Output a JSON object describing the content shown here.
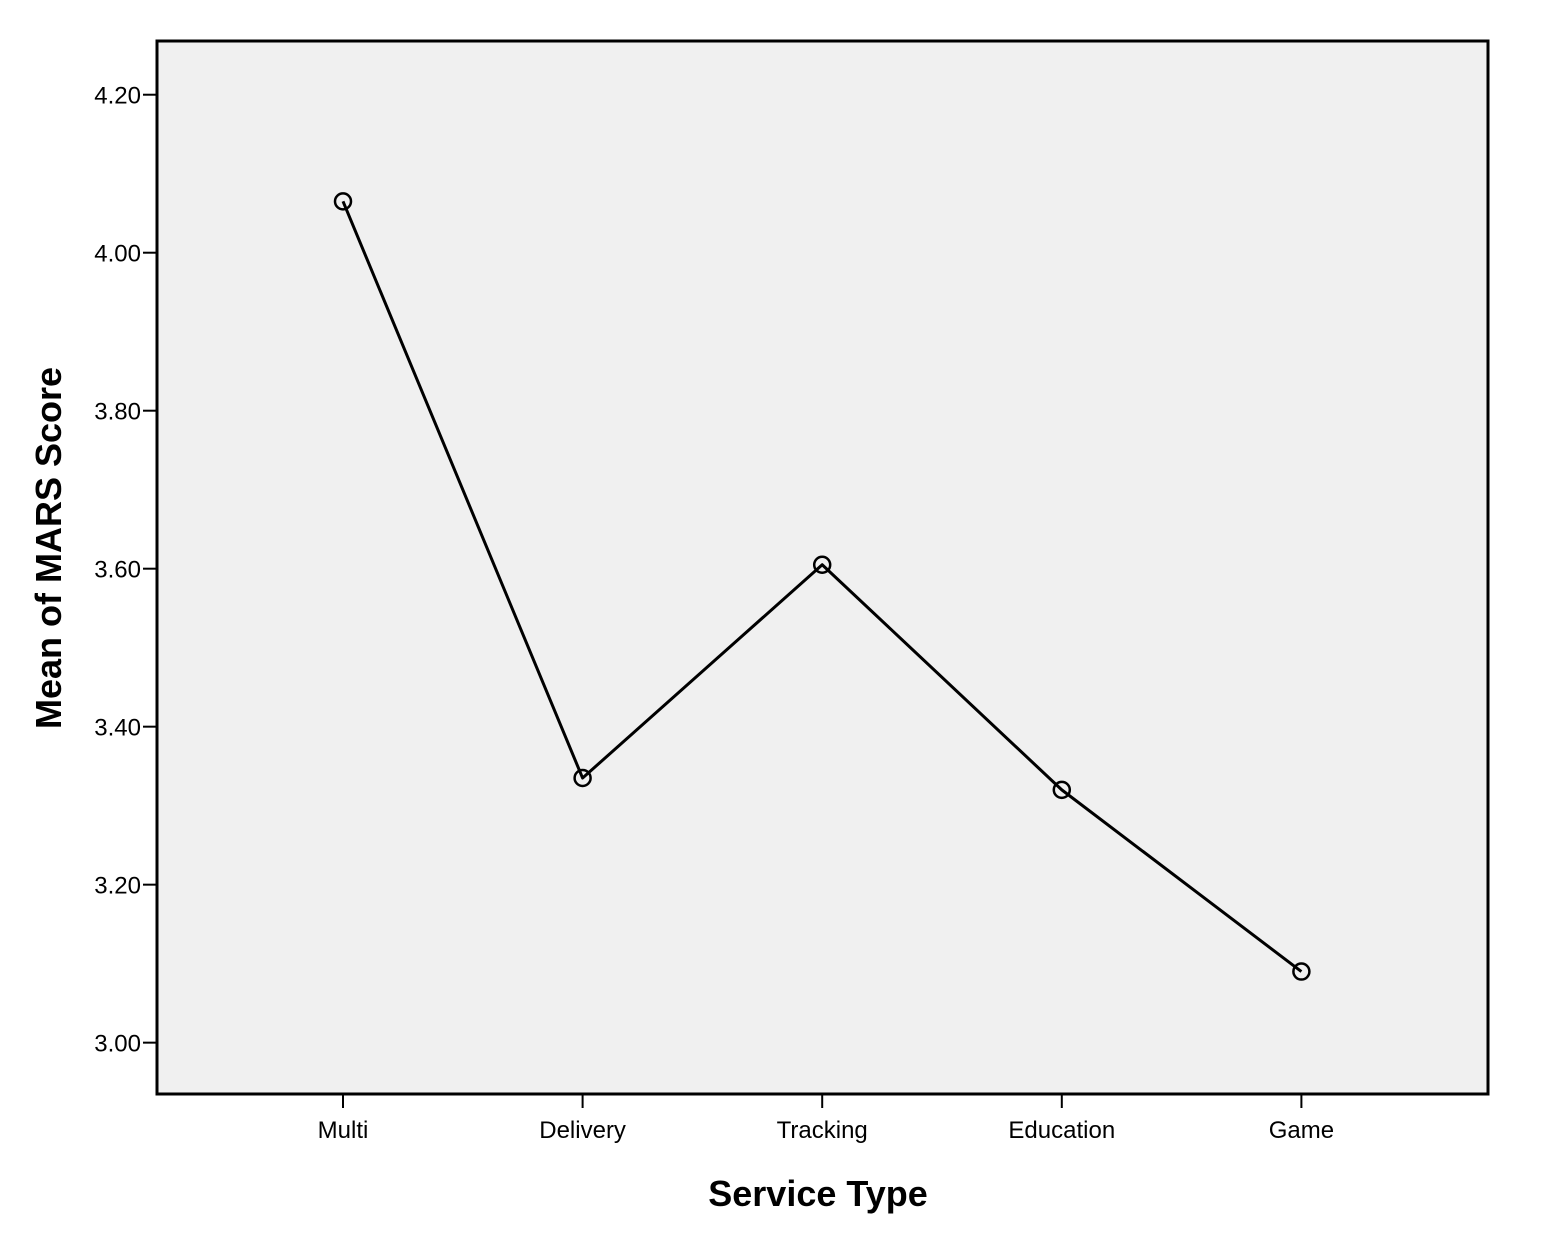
{
  "chart_data": {
    "type": "line",
    "categories": [
      "Multi",
      "Delivery",
      "Tracking",
      "Education",
      "Game"
    ],
    "series": [
      {
        "values": [
          4.065,
          3.335,
          3.605,
          3.32,
          3.09
        ]
      }
    ],
    "xlabel": "Service Type",
    "ylabel": "Mean of MARS Score",
    "ylim": [
      2.935,
      4.268
    ],
    "yticks": [
      "3.00",
      "3.20",
      "3.40",
      "3.60",
      "3.80",
      "4.00",
      "4.20"
    ],
    "grid": false,
    "marker": "open-circle",
    "colors": {
      "plot_background": "#f0f0f0",
      "line": "#000000",
      "axes": "#000000"
    }
  }
}
